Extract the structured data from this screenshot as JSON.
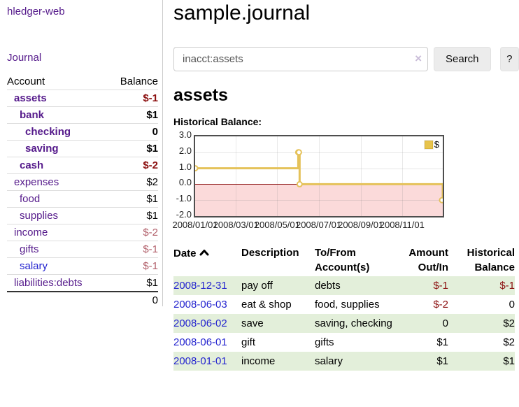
{
  "brand": "hledger-web",
  "sidebar": {
    "journal_link": "Journal",
    "accounts": {
      "col_account": "Account",
      "col_balance": "Balance",
      "rows": [
        {
          "name": "assets",
          "indent": 1,
          "bold": true,
          "balance": "$-1",
          "bal_class": "neg-strong"
        },
        {
          "name": "bank",
          "indent": 2,
          "bold": true,
          "balance": "$1",
          "bal_class": "pos"
        },
        {
          "name": "checking",
          "indent": 3,
          "bold": true,
          "balance": "0",
          "bal_class": "pos"
        },
        {
          "name": "saving",
          "indent": 3,
          "bold": true,
          "balance": "$1",
          "bal_class": "pos"
        },
        {
          "name": "cash",
          "indent": 2,
          "bold": true,
          "balance": "$-2",
          "bal_class": "neg-strong"
        },
        {
          "name": "expenses",
          "indent": 1,
          "bold": false,
          "balance": "$2",
          "bal_class": "pos"
        },
        {
          "name": "food",
          "indent": 2,
          "bold": false,
          "balance": "$1",
          "bal_class": "pos"
        },
        {
          "name": "supplies",
          "indent": 2,
          "bold": false,
          "balance": "$1",
          "bal_class": "pos"
        },
        {
          "name": "income",
          "indent": 1,
          "bold": false,
          "balance": "$-2",
          "bal_class": "neg-muted"
        },
        {
          "name": "gifts",
          "indent": 2,
          "bold": false,
          "balance": "$-1",
          "bal_class": "neg-muted"
        },
        {
          "name": "salary",
          "indent": 2,
          "bold": false,
          "balance": "$-1",
          "bal_class": "neg-muted",
          "blue": true
        },
        {
          "name": "liabilities:debts",
          "indent": 1,
          "bold": false,
          "balance": "$1",
          "bal_class": "pos"
        }
      ],
      "total": "0"
    }
  },
  "header": {
    "title": "sample.journal",
    "search": {
      "value": "inacct:assets",
      "clear_icon": "×",
      "button_label": "Search",
      "help_label": "?"
    }
  },
  "account_page": {
    "heading": "assets",
    "chart_title": "Historical Balance:"
  },
  "chart_data": {
    "type": "line",
    "step": true,
    "title": "Historical Balance",
    "series": [
      {
        "name": "$",
        "color": "#e5c25a",
        "points": [
          [
            "2008-01-01",
            1
          ],
          [
            "2008-06-01",
            2
          ],
          [
            "2008-06-02",
            2
          ],
          [
            "2008-06-03",
            0
          ],
          [
            "2008-12-31",
            -1
          ]
        ]
      }
    ],
    "ylim": [
      -2,
      3
    ],
    "yticks": [
      "3.0",
      "2.0",
      "1.0",
      "0.0",
      "-1.0",
      "-2.0"
    ],
    "xticks": [
      "2008/01/01",
      "2008/03/01",
      "2008/05/01",
      "2008/07/01",
      "2008/09/01",
      "2008/11/01"
    ],
    "grid": true,
    "negative_region_color": "#fbdada",
    "zero_line_color": "#8c1717",
    "legend": {
      "label": "$",
      "position": "top-right",
      "swatch_color": "#e7c34c"
    }
  },
  "register": {
    "columns": {
      "date": "Date",
      "description": "Description",
      "accounts": "To/From Account(s)",
      "amount": "Amount Out/In",
      "balance": "Historical Balance"
    },
    "rows": [
      {
        "date": "2008-12-31",
        "description": "pay off",
        "accounts": "debts",
        "amount": "$-1",
        "amount_class": "neg-strong",
        "balance": "$-1",
        "balance_class": "neg-strong"
      },
      {
        "date": "2008-06-03",
        "description": "eat & shop",
        "accounts": "food, supplies",
        "amount": "$-2",
        "amount_class": "neg-strong",
        "balance": "0",
        "balance_class": "pos"
      },
      {
        "date": "2008-06-02",
        "description": "save",
        "accounts": "saving, checking",
        "amount": "0",
        "amount_class": "pos",
        "balance": "$2",
        "balance_class": "pos"
      },
      {
        "date": "2008-06-01",
        "description": "gift",
        "accounts": "gifts",
        "amount": "$1",
        "amount_class": "pos",
        "balance": "$2",
        "balance_class": "pos"
      },
      {
        "date": "2008-01-01",
        "description": "income",
        "accounts": "salary",
        "amount": "$1",
        "amount_class": "pos",
        "balance": "$1",
        "balance_class": "pos"
      }
    ]
  }
}
